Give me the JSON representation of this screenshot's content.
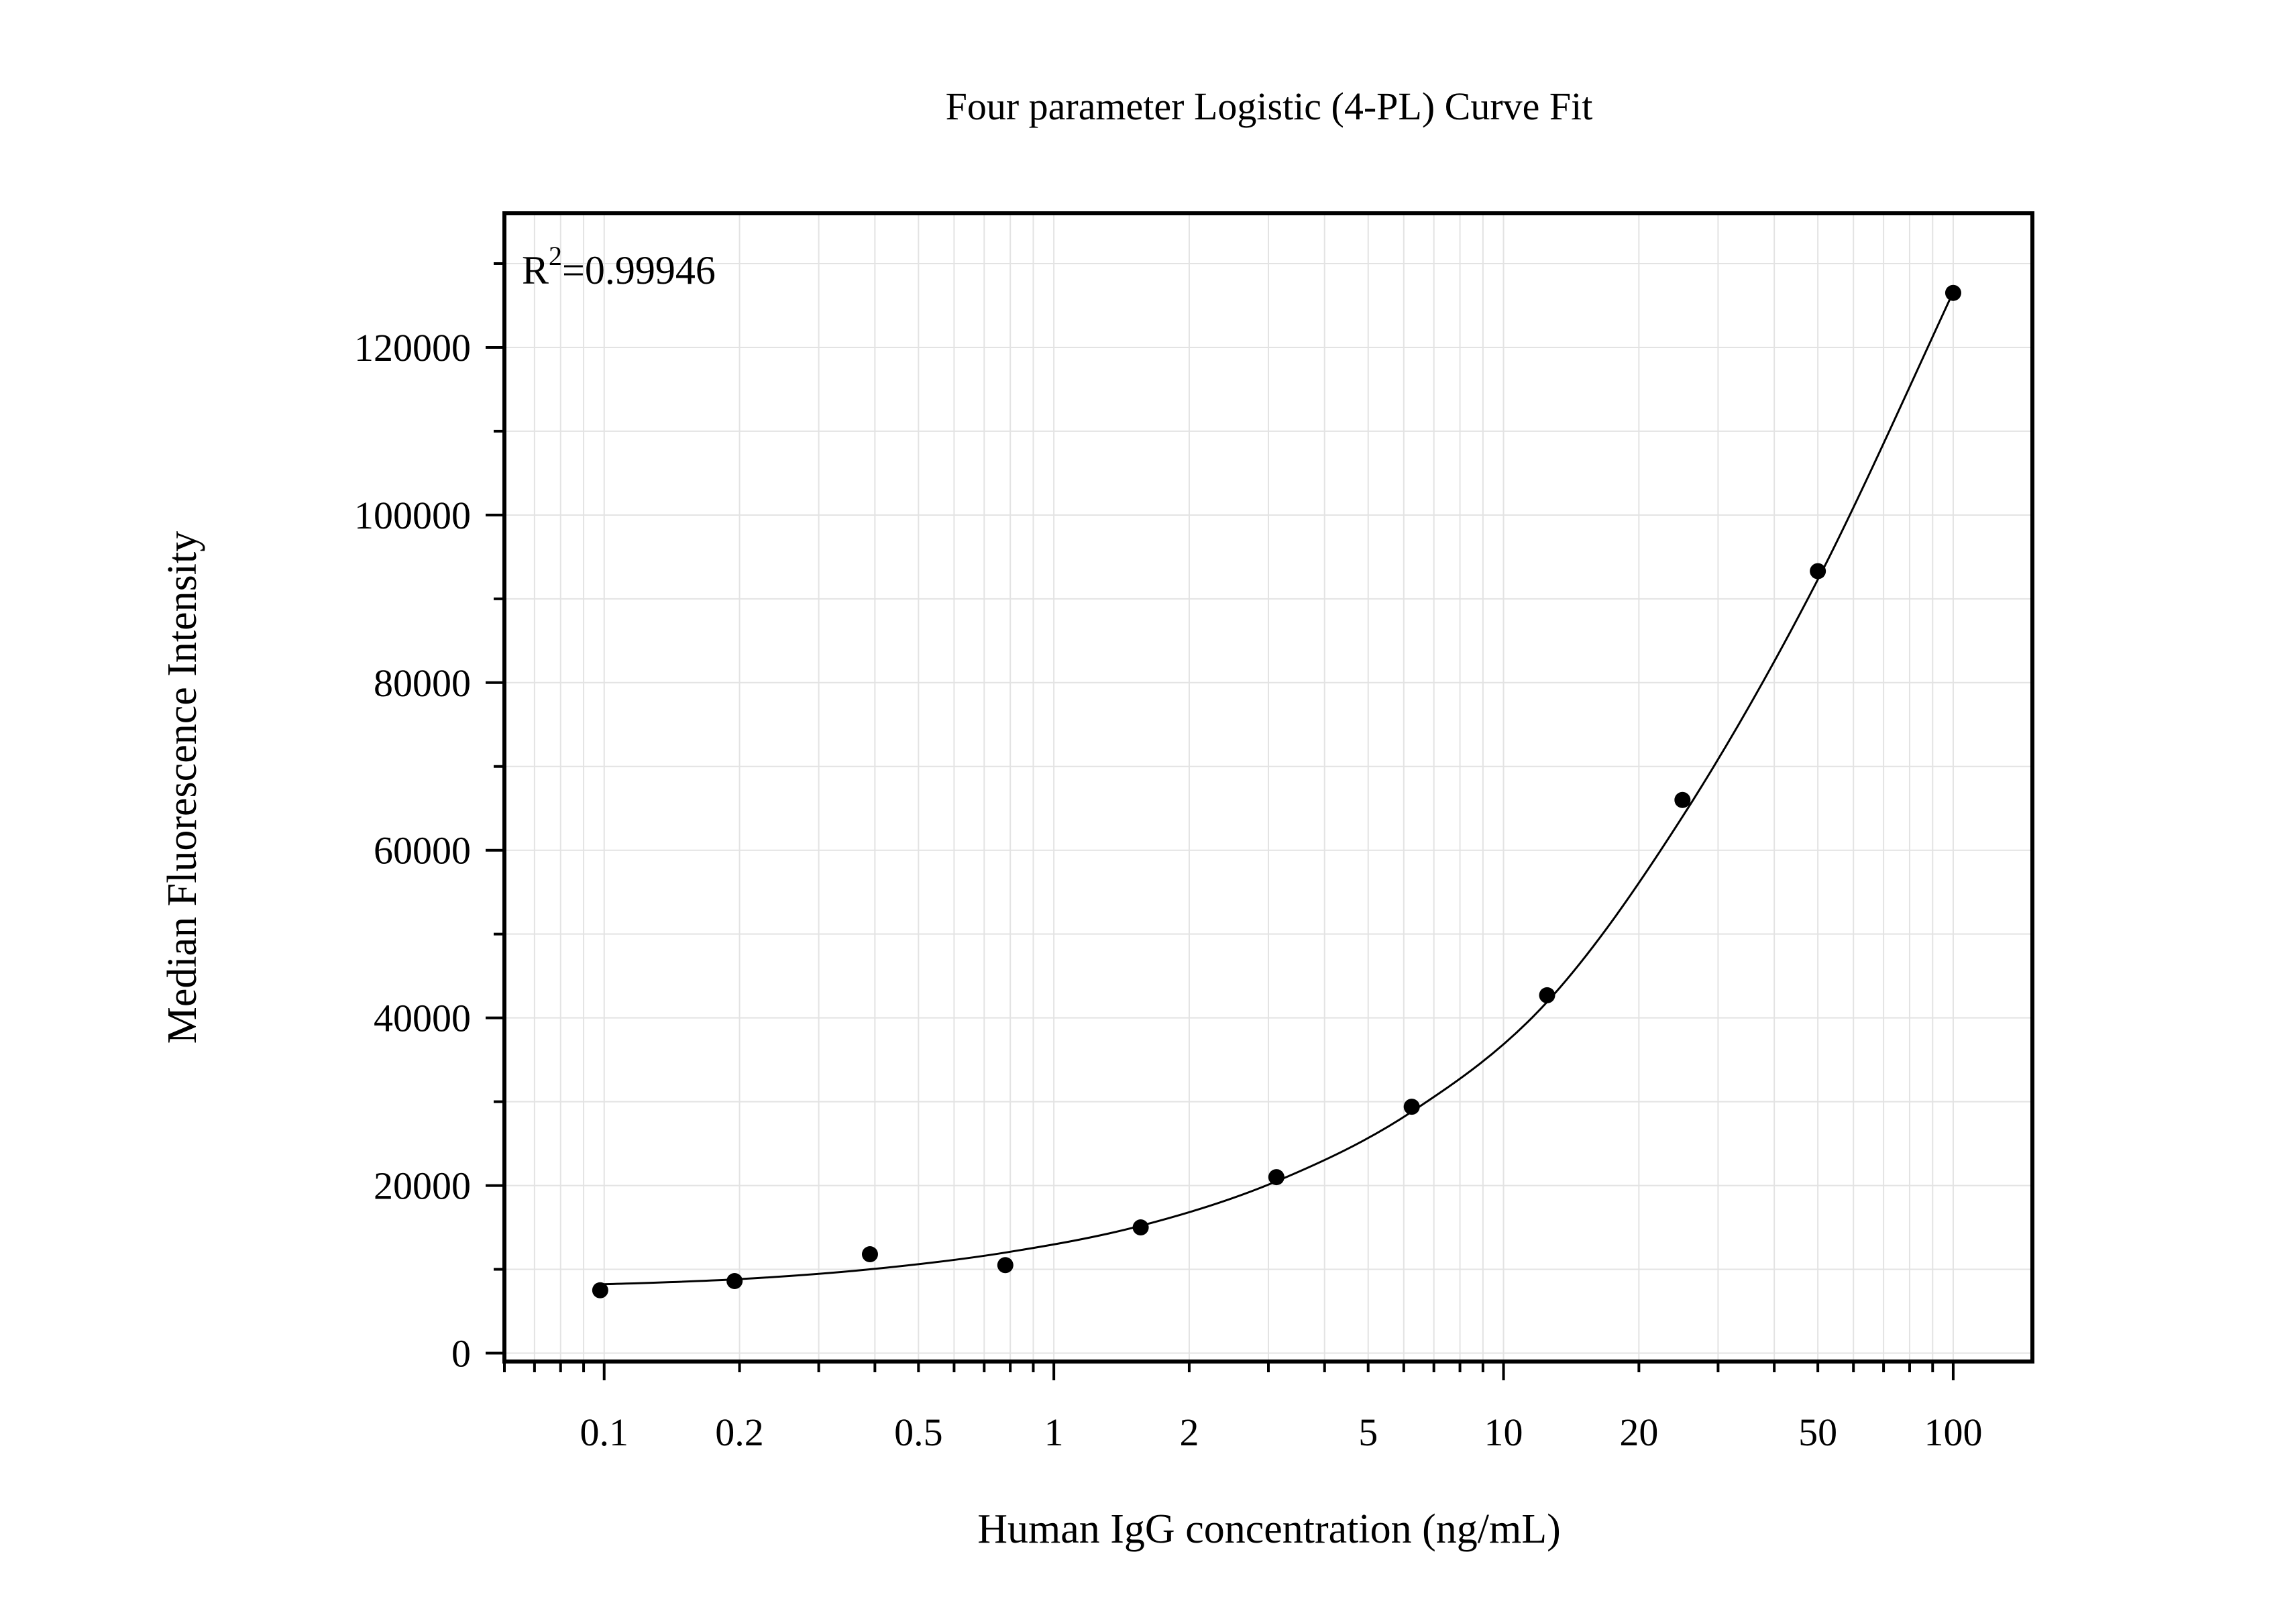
{
  "chart_data": {
    "type": "scatter",
    "title": "Four parameter Logistic (4-PL) Curve Fit",
    "xlabel": "Human IgG concentration (ng/mL)",
    "ylabel": "Median Fluorescence Intensity",
    "x_scale": "log",
    "xlim": [
      0.06,
      150
    ],
    "ylim": [
      -1000,
      136000
    ],
    "x_ticks": [
      0.1,
      0.2,
      0.5,
      1,
      2,
      5,
      10,
      20,
      50,
      100
    ],
    "x_tick_labels": [
      "0.1",
      "0.2",
      "0.5",
      "1",
      "2",
      "5",
      "10",
      "20",
      "50",
      "100"
    ],
    "y_ticks": [
      0,
      20000,
      40000,
      60000,
      80000,
      100000,
      120000
    ],
    "y_tick_labels": [
      "0",
      "20000",
      "40000",
      "60000",
      "80000",
      "100000",
      "120000"
    ],
    "grid": true,
    "annotation": {
      "base": "R",
      "superscript": "2",
      "text": "=0.99946"
    },
    "series": [
      {
        "type": "scatter",
        "x": [
          0.098,
          0.195,
          0.39,
          0.78,
          1.56,
          3.125,
          6.25,
          12.5,
          25,
          50,
          100
        ],
        "y": [
          7500,
          8600,
          11800,
          10500,
          15000,
          21000,
          29400,
          42700,
          66000,
          93300,
          126500
        ],
        "color": "#000000"
      },
      {
        "type": "line",
        "x": [
          0.098,
          0.195,
          0.39,
          0.78,
          1.56,
          3.125,
          6.25,
          12.5,
          25,
          50,
          100
        ],
        "y": [
          8200,
          8800,
          10000,
          12000,
          15200,
          20500,
          28800,
          41900,
          64000,
          92300,
          126600
        ],
        "color": "#000000"
      }
    ]
  }
}
